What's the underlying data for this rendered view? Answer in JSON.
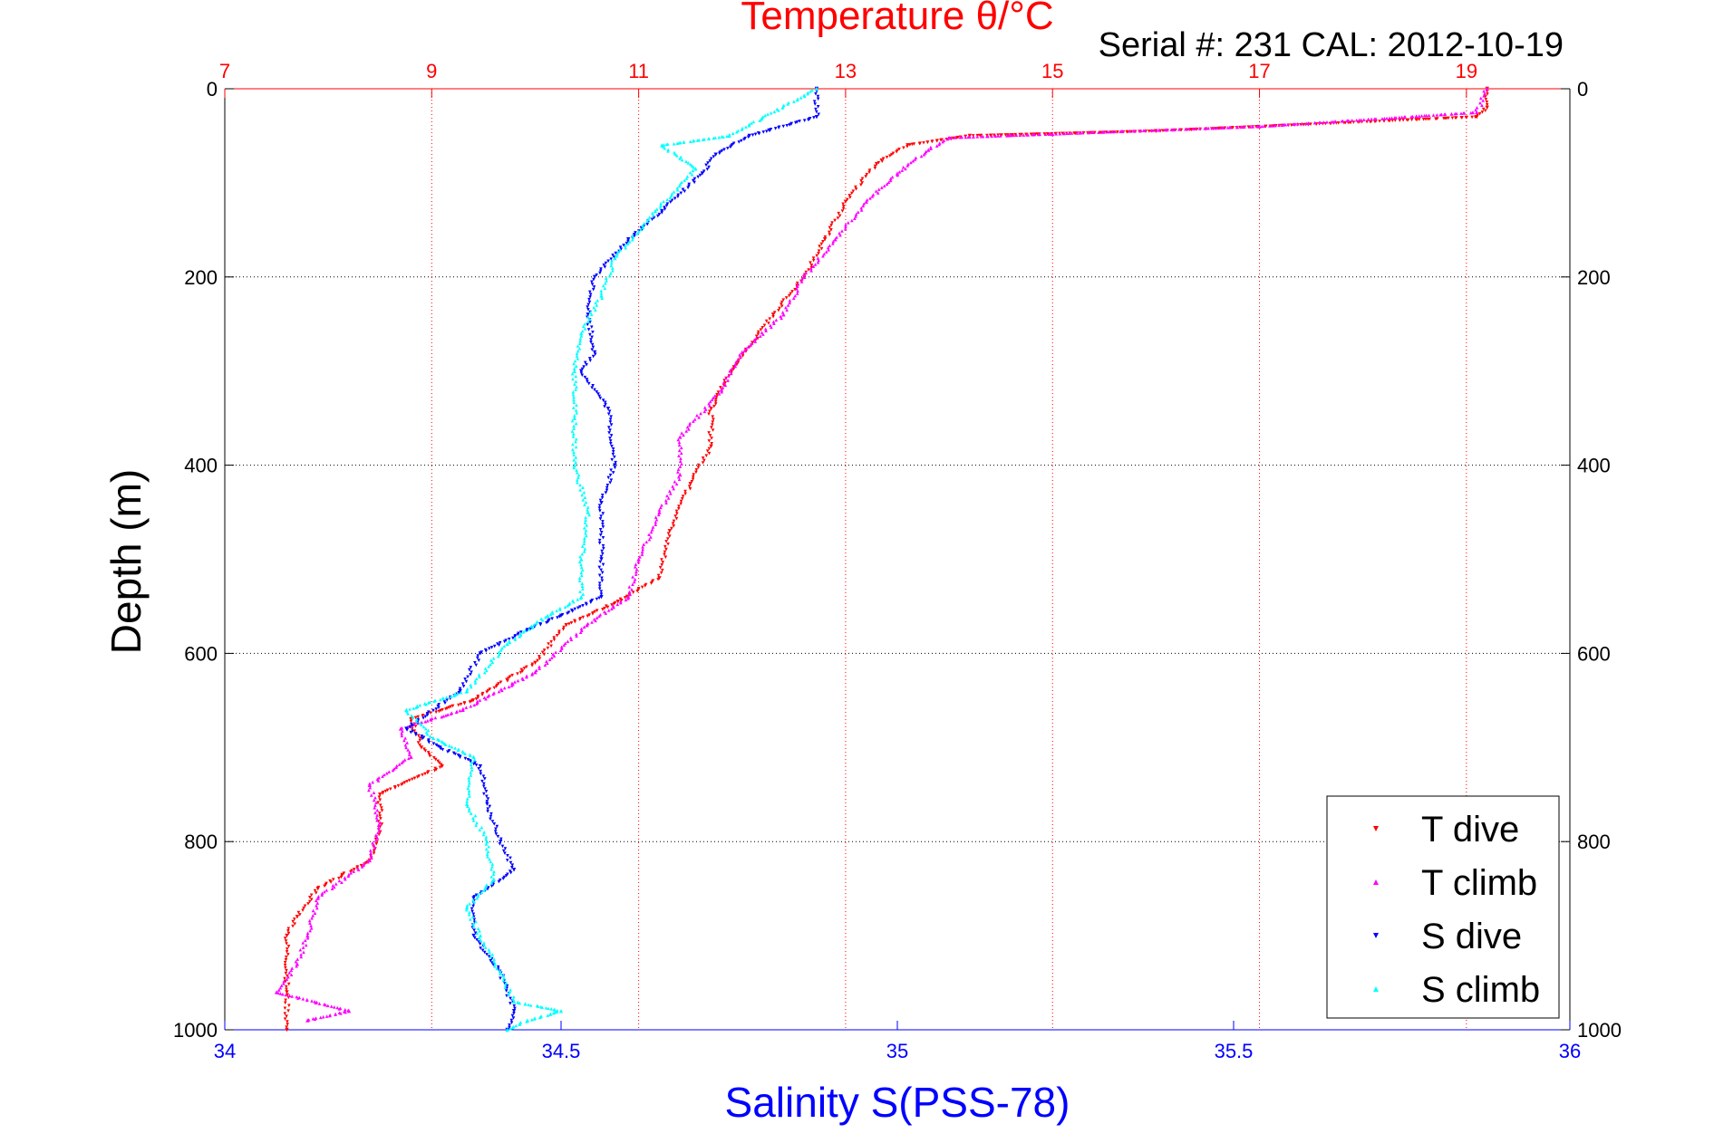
{
  "chart_data": {
    "type": "scatter",
    "title_top": "Temperature θ/°C",
    "subtitle": "Serial #: 231  CAL: 2012-10-19",
    "ylabel": "Depth (m)",
    "xlabel_bottom": "Salinity S(PSS-78)",
    "grid": true,
    "y_axis": {
      "range": [
        0,
        1000
      ],
      "reversed": true,
      "ticks": [
        0,
        200,
        400,
        600,
        800,
        1000
      ],
      "tick_labels": [
        "0",
        "200",
        "400",
        "600",
        "800",
        "1000"
      ]
    },
    "x_temperature": {
      "range": [
        7,
        20
      ],
      "ticks": [
        7,
        9,
        11,
        13,
        15,
        17,
        19
      ],
      "tick_labels": [
        "7",
        "9",
        "11",
        "13",
        "15",
        "17",
        "19"
      ],
      "color": "#ff0000",
      "position": "top"
    },
    "x_salinity": {
      "range": [
        34,
        36
      ],
      "ticks": [
        34,
        34.5,
        35,
        35.5,
        36
      ],
      "tick_labels": [
        "34",
        "34.5",
        "35",
        "35.5",
        "36"
      ],
      "color": "#0000ff",
      "position": "bottom"
    },
    "legend": {
      "position": "bottom-right",
      "entries": [
        "T dive",
        "T climb",
        "S dive",
        "S climb"
      ]
    },
    "series": [
      {
        "name": "T dive",
        "axis": "temperature",
        "color": "#ff0000",
        "marker": "triangle-down",
        "points": [
          [
            19.2,
            0
          ],
          [
            19.2,
            20
          ],
          [
            19.1,
            30
          ],
          [
            16,
            45
          ],
          [
            14.2,
            50
          ],
          [
            13.6,
            60
          ],
          [
            13.3,
            80
          ],
          [
            13.0,
            120
          ],
          [
            12.8,
            160
          ],
          [
            12.6,
            200
          ],
          [
            12.3,
            240
          ],
          [
            12.1,
            270
          ],
          [
            11.9,
            300
          ],
          [
            11.7,
            340
          ],
          [
            11.7,
            380
          ],
          [
            11.5,
            420
          ],
          [
            11.3,
            470
          ],
          [
            11.2,
            520
          ],
          [
            10.8,
            545
          ],
          [
            10.3,
            570
          ],
          [
            10.0,
            610
          ],
          [
            9.4,
            650
          ],
          [
            8.8,
            670
          ],
          [
            8.9,
            700
          ],
          [
            9.1,
            720
          ],
          [
            8.5,
            750
          ],
          [
            8.5,
            790
          ],
          [
            8.4,
            820
          ],
          [
            7.9,
            850
          ],
          [
            7.7,
            880
          ],
          [
            7.6,
            900
          ],
          [
            7.6,
            960
          ],
          [
            7.6,
            1000
          ]
        ]
      },
      {
        "name": "T climb",
        "axis": "temperature",
        "color": "#ff00ff",
        "marker": "triangle-up",
        "points": [
          [
            19.2,
            0
          ],
          [
            19.1,
            25
          ],
          [
            17,
            40
          ],
          [
            15,
            48
          ],
          [
            14,
            52
          ],
          [
            13.8,
            65
          ],
          [
            13.5,
            90
          ],
          [
            13.2,
            120
          ],
          [
            12.9,
            160
          ],
          [
            12.6,
            200
          ],
          [
            12.4,
            240
          ],
          [
            12.0,
            280
          ],
          [
            11.8,
            320
          ],
          [
            11.4,
            370
          ],
          [
            11.4,
            410
          ],
          [
            11.2,
            450
          ],
          [
            11.0,
            500
          ],
          [
            10.9,
            540
          ],
          [
            10.5,
            570
          ],
          [
            10.0,
            620
          ],
          [
            9.3,
            660
          ],
          [
            8.7,
            680
          ],
          [
            8.8,
            710
          ],
          [
            8.4,
            740
          ],
          [
            8.5,
            780
          ],
          [
            8.4,
            820
          ],
          [
            7.9,
            860
          ],
          [
            7.8,
            900
          ],
          [
            7.7,
            930
          ],
          [
            7.5,
            960
          ],
          [
            8.2,
            980
          ],
          [
            7.8,
            990
          ]
        ]
      },
      {
        "name": "S dive",
        "axis": "salinity",
        "color": "#0000ff",
        "marker": "triangle-down",
        "points": [
          [
            34.88,
            0
          ],
          [
            34.88,
            30
          ],
          [
            34.78,
            50
          ],
          [
            34.73,
            70
          ],
          [
            34.71,
            90
          ],
          [
            34.65,
            130
          ],
          [
            34.6,
            160
          ],
          [
            34.55,
            200
          ],
          [
            34.54,
            240
          ],
          [
            34.55,
            280
          ],
          [
            34.53,
            300
          ],
          [
            34.57,
            340
          ],
          [
            34.58,
            400
          ],
          [
            34.56,
            440
          ],
          [
            34.56,
            500
          ],
          [
            34.56,
            540
          ],
          [
            34.5,
            560
          ],
          [
            34.45,
            575
          ],
          [
            34.38,
            600
          ],
          [
            34.35,
            640
          ],
          [
            34.27,
            680
          ],
          [
            34.32,
            700
          ],
          [
            34.38,
            720
          ],
          [
            34.39,
            760
          ],
          [
            34.41,
            800
          ],
          [
            34.43,
            830
          ],
          [
            34.37,
            860
          ],
          [
            34.37,
            900
          ],
          [
            34.41,
            940
          ],
          [
            34.43,
            980
          ],
          [
            34.42,
            1000
          ]
        ]
      },
      {
        "name": "S climb",
        "axis": "salinity",
        "color": "#00ffff",
        "marker": "triangle-up",
        "points": [
          [
            34.88,
            0
          ],
          [
            34.75,
            50
          ],
          [
            34.65,
            60
          ],
          [
            34.7,
            85
          ],
          [
            34.64,
            130
          ],
          [
            34.58,
            180
          ],
          [
            34.56,
            220
          ],
          [
            34.53,
            260
          ],
          [
            34.52,
            300
          ],
          [
            34.52,
            350
          ],
          [
            34.52,
            400
          ],
          [
            34.54,
            450
          ],
          [
            34.53,
            500
          ],
          [
            34.53,
            540
          ],
          [
            34.48,
            560
          ],
          [
            34.42,
            590
          ],
          [
            34.36,
            640
          ],
          [
            34.27,
            660
          ],
          [
            34.31,
            690
          ],
          [
            34.37,
            710
          ],
          [
            34.36,
            760
          ],
          [
            34.39,
            800
          ],
          [
            34.4,
            840
          ],
          [
            34.36,
            870
          ],
          [
            34.38,
            900
          ],
          [
            34.41,
            940
          ],
          [
            34.43,
            970
          ],
          [
            34.5,
            980
          ],
          [
            34.45,
            990
          ],
          [
            34.42,
            1000
          ]
        ]
      }
    ]
  }
}
